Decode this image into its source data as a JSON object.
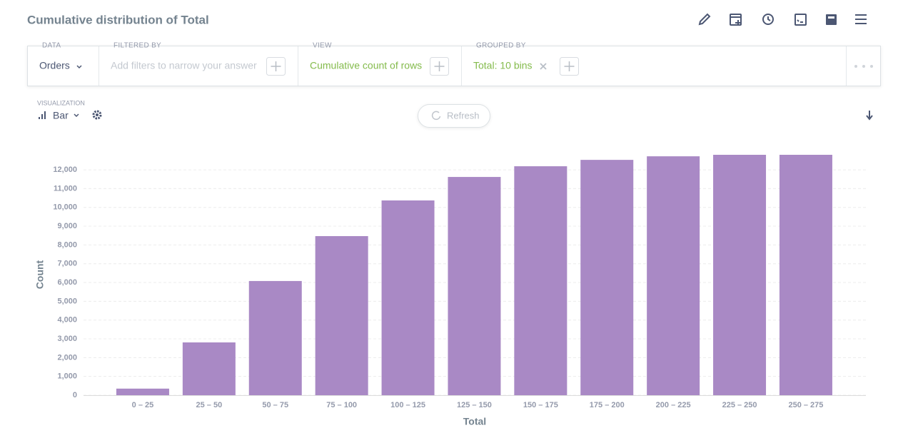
{
  "header": {
    "title": "Cumulative distribution of Total"
  },
  "query": {
    "data": {
      "label": "DATA",
      "value": "Orders"
    },
    "filter": {
      "label": "FILTERED BY",
      "placeholder": "Add filters to narrow your answer"
    },
    "view": {
      "label": "VIEW",
      "value": "Cumulative count of rows"
    },
    "grouped": {
      "label": "GROUPED BY",
      "value": "Total: 10 bins"
    }
  },
  "toolbar": {
    "visualization_label": "VISUALIZATION",
    "visualization": "Bar",
    "refresh": "Refresh"
  },
  "chart_data": {
    "type": "bar",
    "x_label": "Total",
    "y_label": "Count",
    "categories": [
      "0 – 25",
      "25 – 50",
      "50 – 75",
      "75 – 100",
      "100 – 125",
      "125 – 150",
      "150 – 175",
      "175 – 200",
      "200 – 225",
      "225 – 250",
      "250 – 275"
    ],
    "values": [
      350,
      2810,
      6080,
      8470,
      10370,
      11620,
      12190,
      12530,
      12720,
      12800,
      12800
    ],
    "color": "#a989c5",
    "ylim": [
      0,
      12800
    ],
    "yticks": [
      0,
      {
        "value": 1000,
        "label": "1,000"
      },
      {
        "value": 2000,
        "label": "2,000"
      },
      {
        "value": 3000,
        "label": "3,000"
      },
      {
        "value": 4000,
        "label": "4,000"
      },
      {
        "value": 5000,
        "label": "5,000"
      },
      {
        "value": 6000,
        "label": "6,000"
      },
      {
        "value": 7000,
        "label": "7,000"
      },
      {
        "value": 8000,
        "label": "8,000"
      },
      {
        "value": 9000,
        "label": "9,000"
      },
      {
        "value": 10000,
        "label": "10,000"
      },
      {
        "value": 11000,
        "label": "11,000"
      },
      {
        "value": 12000,
        "label": "12,000"
      }
    ],
    "grid": true
  }
}
